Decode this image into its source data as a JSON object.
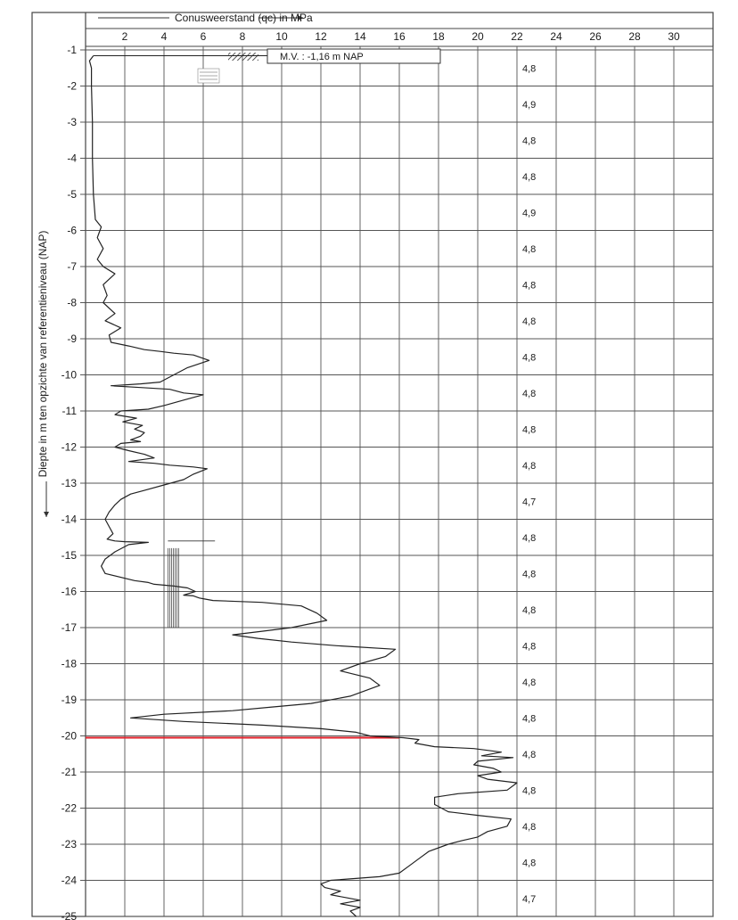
{
  "chart_data": {
    "type": "line",
    "title": "Conusweerstand (qc) in MPa",
    "xlabel": "Conusweerstand (qc) in MPa",
    "ylabel": "Diepte in m ten opzichte van referentieniveau (NAP)",
    "xlim": [
      0,
      32
    ],
    "ylim": [
      -25,
      -0.8
    ],
    "x_ticks": [
      "2",
      "4",
      "6",
      "8",
      "10",
      "12",
      "14",
      "16",
      "18",
      "20",
      "22",
      "24",
      "26",
      "28",
      "30"
    ],
    "x_tick_values": [
      2,
      4,
      6,
      8,
      10,
      12,
      14,
      16,
      18,
      20,
      22,
      24,
      26,
      28,
      30
    ],
    "y_ticks": [
      "-1",
      "-2",
      "-3",
      "-4",
      "-5",
      "-6",
      "-7",
      "-8",
      "-9",
      "-10",
      "-11",
      "-12",
      "-13",
      "-14",
      "-15",
      "-16",
      "-17",
      "-18",
      "-19",
      "-20",
      "-21",
      "-22",
      "-23",
      "-24",
      "-25"
    ],
    "y_tick_values": [
      -1,
      -2,
      -3,
      -4,
      -5,
      -6,
      -7,
      -8,
      -9,
      -10,
      -11,
      -12,
      -13,
      -14,
      -15,
      -16,
      -17,
      -18,
      -19,
      -20,
      -21,
      -22,
      -23,
      -24,
      -25
    ],
    "grid": true,
    "annotation": "M.V. :  -1,16  m NAP",
    "right_column": {
      "depths": [
        -1.5,
        -2.5,
        -3.5,
        -4.5,
        -5.5,
        -6.5,
        -7.5,
        -8.5,
        -9.5,
        -10.5,
        -11.5,
        -12.5,
        -13.5,
        -14.5,
        -15.5,
        -16.5,
        -17.5,
        -18.5,
        -19.5,
        -20.5,
        -21.5,
        -22.5,
        -23.5,
        -24.5
      ],
      "labels": [
        "4,8",
        "4,9",
        "4,8",
        "4,8",
        "4,9",
        "4,8",
        "4,8",
        "4,8",
        "4,8",
        "4,8",
        "4,8",
        "4,8",
        "4,7",
        "4,8",
        "4,8",
        "4,8",
        "4,8",
        "4,8",
        "4,8",
        "4,8",
        "4,8",
        "4,8",
        "4,8",
        "4,7"
      ]
    },
    "reference_line": {
      "depth": -20.05,
      "x_from": 0,
      "x_to": 16,
      "color": "#e0202a"
    },
    "series": [
      {
        "points": [
          [
            0.4,
            -1.16
          ],
          [
            0.2,
            -1.3
          ],
          [
            0.3,
            -1.5
          ],
          [
            0.3,
            -2
          ],
          [
            0.35,
            -3
          ],
          [
            0.35,
            -4
          ],
          [
            0.4,
            -5
          ],
          [
            0.5,
            -5.7
          ],
          [
            0.8,
            -5.9
          ],
          [
            0.6,
            -6.2
          ],
          [
            0.9,
            -6.5
          ],
          [
            0.6,
            -6.8
          ],
          [
            0.9,
            -7
          ],
          [
            1.5,
            -7.2
          ],
          [
            0.9,
            -7.5
          ],
          [
            1.1,
            -7.8
          ],
          [
            0.9,
            -8
          ],
          [
            1.5,
            -8.3
          ],
          [
            1.0,
            -8.5
          ],
          [
            1.8,
            -8.7
          ],
          [
            1.2,
            -8.9
          ],
          [
            1.3,
            -9.1
          ],
          [
            2.2,
            -9.2
          ],
          [
            3.0,
            -9.3
          ],
          [
            3.8,
            -9.35
          ],
          [
            4.5,
            -9.4
          ],
          [
            5.5,
            -9.45
          ],
          [
            6.3,
            -9.6
          ],
          [
            5.2,
            -9.8
          ],
          [
            4.5,
            -10.0
          ],
          [
            3.8,
            -10.2
          ],
          [
            2.8,
            -10.25
          ],
          [
            1.3,
            -10.3
          ],
          [
            2.8,
            -10.35
          ],
          [
            4.3,
            -10.4
          ],
          [
            5.0,
            -10.5
          ],
          [
            6.0,
            -10.55
          ],
          [
            5.0,
            -10.7
          ],
          [
            4.0,
            -10.85
          ],
          [
            3.2,
            -10.95
          ],
          [
            1.8,
            -11.0
          ],
          [
            1.5,
            -11.1
          ],
          [
            2.6,
            -11.2
          ],
          [
            1.9,
            -11.3
          ],
          [
            2.9,
            -11.4
          ],
          [
            2.5,
            -11.5
          ],
          [
            3.0,
            -11.6
          ],
          [
            2.8,
            -11.7
          ],
          [
            2.3,
            -11.8
          ],
          [
            2.8,
            -11.85
          ],
          [
            1.8,
            -11.9
          ],
          [
            1.5,
            -12.0
          ],
          [
            2.2,
            -12.1
          ],
          [
            3.0,
            -12.2
          ],
          [
            3.5,
            -12.3
          ],
          [
            2.2,
            -12.4
          ],
          [
            3.5,
            -12.45
          ],
          [
            4.3,
            -12.5
          ],
          [
            5.5,
            -12.55
          ],
          [
            6.2,
            -12.6
          ],
          [
            5.5,
            -12.75
          ],
          [
            5.0,
            -12.9
          ],
          [
            4.0,
            -13.05
          ],
          [
            3.0,
            -13.2
          ],
          [
            2.3,
            -13.3
          ],
          [
            1.8,
            -13.45
          ],
          [
            1.5,
            -13.6
          ],
          [
            1.2,
            -13.8
          ],
          [
            1.0,
            -14.0
          ],
          [
            1.2,
            -14.2
          ],
          [
            1.4,
            -14.4
          ],
          [
            1.1,
            -14.55
          ],
          [
            1.5,
            -14.6
          ],
          [
            2.0,
            -14.62
          ],
          [
            3.2,
            -14.64
          ],
          [
            2.2,
            -14.7
          ],
          [
            1.5,
            -14.9
          ],
          [
            1.0,
            -15.1
          ],
          [
            0.8,
            -15.3
          ],
          [
            1.0,
            -15.5
          ],
          [
            2.5,
            -15.7
          ],
          [
            3.2,
            -15.75
          ],
          [
            3.5,
            -15.8
          ],
          [
            4.5,
            -15.85
          ],
          [
            5.2,
            -15.9
          ],
          [
            5.6,
            -16.0
          ],
          [
            5.0,
            -16.1
          ],
          [
            5.5,
            -16.12
          ],
          [
            5.8,
            -16.18
          ],
          [
            6.0,
            -16.2
          ],
          [
            6.5,
            -16.25
          ],
          [
            9.0,
            -16.3
          ],
          [
            11.0,
            -16.4
          ],
          [
            11.8,
            -16.6
          ],
          [
            12.3,
            -16.8
          ],
          [
            10.5,
            -17.0
          ],
          [
            9.0,
            -17.1
          ],
          [
            7.5,
            -17.2
          ],
          [
            8.8,
            -17.3
          ],
          [
            10.5,
            -17.4
          ],
          [
            12.8,
            -17.5
          ],
          [
            15.8,
            -17.6
          ],
          [
            15.3,
            -17.8
          ],
          [
            14.0,
            -18.0
          ],
          [
            13.0,
            -18.2
          ],
          [
            14.5,
            -18.4
          ],
          [
            15.0,
            -18.6
          ],
          [
            13.5,
            -18.9
          ],
          [
            11.5,
            -19.1
          ],
          [
            9.5,
            -19.2
          ],
          [
            7.5,
            -19.3
          ],
          [
            4.0,
            -19.4
          ],
          [
            2.3,
            -19.5
          ],
          [
            5.0,
            -19.6
          ],
          [
            9.0,
            -19.7
          ],
          [
            12.0,
            -19.8
          ],
          [
            13.8,
            -19.9
          ],
          [
            14.5,
            -20.0
          ],
          [
            16.2,
            -20.05
          ],
          [
            17.0,
            -20.1
          ],
          [
            16.8,
            -20.2
          ],
          [
            17.8,
            -20.3
          ],
          [
            19.8,
            -20.35
          ],
          [
            21.2,
            -20.45
          ],
          [
            20.2,
            -20.55
          ],
          [
            21.8,
            -20.6
          ],
          [
            20.0,
            -20.7
          ],
          [
            19.8,
            -20.8
          ],
          [
            20.8,
            -20.9
          ],
          [
            21.2,
            -21.0
          ],
          [
            20.0,
            -21.1
          ],
          [
            20.5,
            -21.2
          ],
          [
            22.0,
            -21.3
          ],
          [
            21.5,
            -21.5
          ],
          [
            19.0,
            -21.6
          ],
          [
            17.8,
            -21.7
          ],
          [
            17.8,
            -21.9
          ],
          [
            18.5,
            -22.1
          ],
          [
            20.0,
            -22.2
          ],
          [
            21.7,
            -22.3
          ],
          [
            21.5,
            -22.5
          ],
          [
            20.5,
            -22.65
          ],
          [
            20.0,
            -22.8
          ],
          [
            19.2,
            -22.9
          ],
          [
            18.5,
            -23.0
          ],
          [
            17.5,
            -23.2
          ],
          [
            17.0,
            -23.4
          ],
          [
            16.5,
            -23.6
          ],
          [
            16.0,
            -23.8
          ],
          [
            15.0,
            -23.9
          ],
          [
            12.5,
            -24.0
          ],
          [
            12.0,
            -24.1
          ],
          [
            12.2,
            -24.2
          ],
          [
            13.0,
            -24.3
          ],
          [
            12.5,
            -24.4
          ],
          [
            13.5,
            -24.5
          ],
          [
            14.0,
            -24.55
          ],
          [
            13.0,
            -24.65
          ],
          [
            14.0,
            -24.75
          ],
          [
            13.5,
            -24.85
          ],
          [
            13.8,
            -25.0
          ]
        ]
      }
    ]
  }
}
